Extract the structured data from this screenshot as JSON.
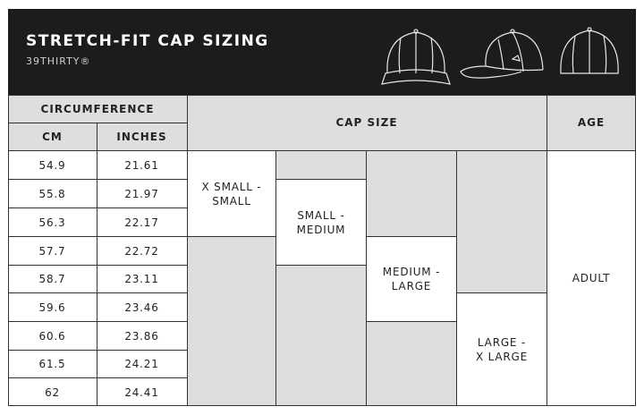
{
  "header": {
    "title": "STRETCH-FIT CAP SIZING",
    "subtitle": "39THIRTY®",
    "icons": [
      "cap-front-icon",
      "cap-side-icon",
      "cap-back-icon"
    ]
  },
  "table": {
    "headers": {
      "circumference": "CIRCUMFERENCE",
      "cm": "CM",
      "inches": "INCHES",
      "cap_size": "CAP SIZE",
      "age": "AGE"
    },
    "rows": [
      {
        "cm": "54.9",
        "inches": "21.61"
      },
      {
        "cm": "55.8",
        "inches": "21.97"
      },
      {
        "cm": "56.3",
        "inches": "22.17"
      },
      {
        "cm": "57.7",
        "inches": "22.72"
      },
      {
        "cm": "58.7",
        "inches": "23.11"
      },
      {
        "cm": "59.6",
        "inches": "23.46"
      },
      {
        "cm": "60.6",
        "inches": "23.86"
      },
      {
        "cm": "61.5",
        "inches": "24.21"
      },
      {
        "cm": "62",
        "inches": "24.41"
      }
    ],
    "sizes": {
      "xs_s": [
        "X SMALL -",
        "SMALL"
      ],
      "s_m": [
        "SMALL -",
        "MEDIUM"
      ],
      "m_l": [
        "MEDIUM -",
        "LARGE"
      ],
      "l_xl": [
        "LARGE -",
        "X LARGE"
      ]
    },
    "age": "ADULT"
  },
  "colors": {
    "header_bg": "#1c1c1c",
    "header_text": "#ffffff",
    "table_header_bg": "#dedede",
    "inactive_cell_bg": "#dedede",
    "border": "#333333"
  }
}
